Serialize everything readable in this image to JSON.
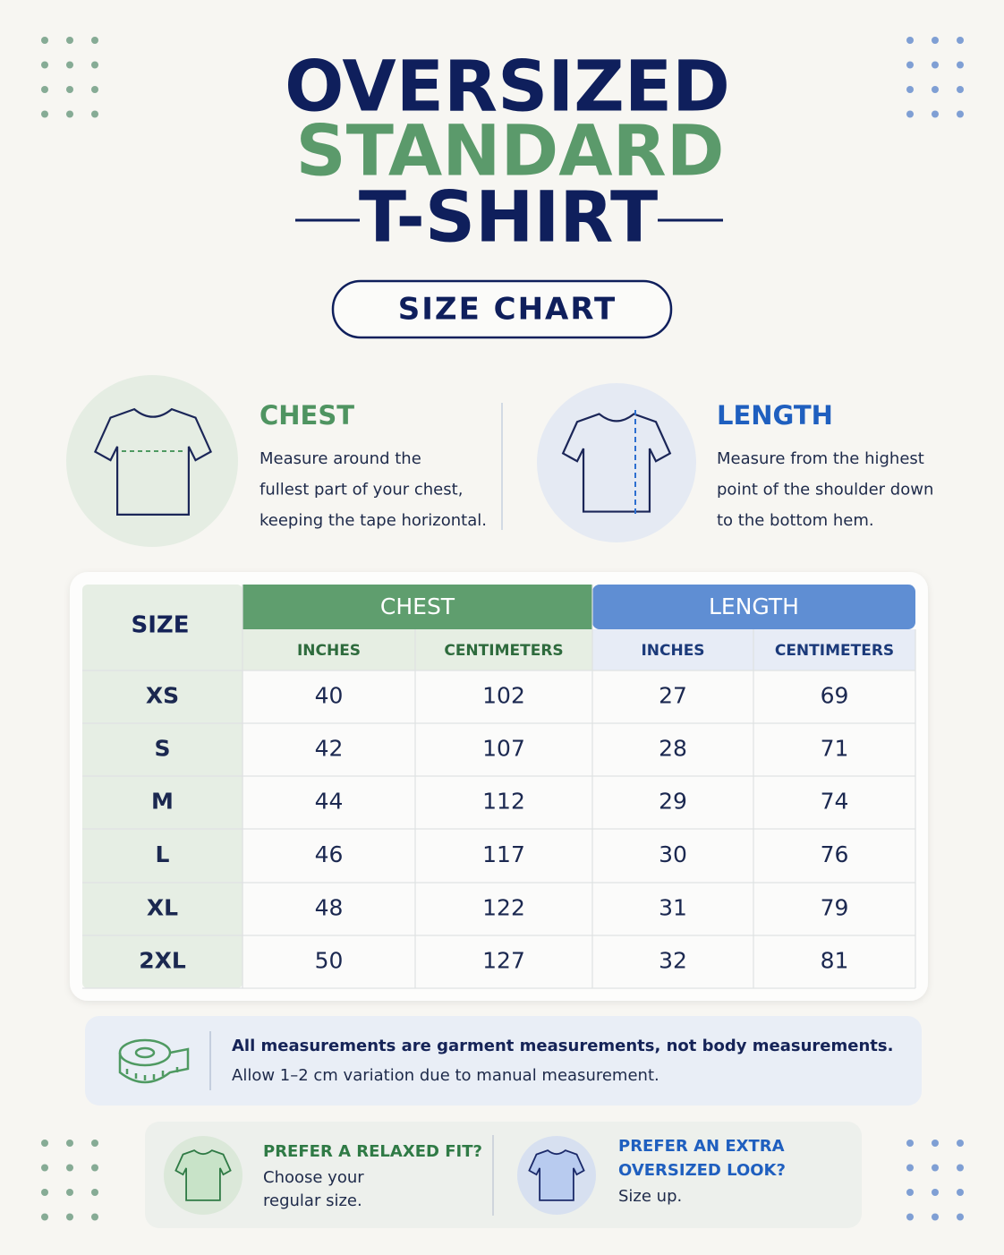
{
  "header": {
    "title_line1": "OVERSIZED",
    "title_line2": "STANDARD",
    "title_line3": "T-SHIRT",
    "badge": "SIZE CHART"
  },
  "guides": [
    {
      "title": "CHEST",
      "text": [
        "Measure around the",
        "fullest part of your chest,",
        "keeping the tape horizontal."
      ]
    },
    {
      "title": "LENGTH",
      "text": [
        "Measure from the highest",
        "point of the shoulder down",
        "to the bottom hem."
      ]
    }
  ],
  "table": {
    "size_header": "SIZE",
    "groups": [
      {
        "label": "CHEST",
        "units": [
          "INCHES",
          "CENTIMETERS"
        ]
      },
      {
        "label": "LENGTH",
        "units": [
          "INCHES",
          "CENTIMETERS"
        ]
      }
    ],
    "rows": [
      [
        "XS",
        40,
        102,
        27,
        69
      ],
      [
        "S",
        42,
        107,
        28,
        71
      ],
      [
        "M",
        44,
        112,
        29,
        74
      ],
      [
        "L",
        46,
        117,
        30,
        76
      ],
      [
        "XL",
        48,
        122,
        31,
        79
      ],
      [
        "2XL",
        50,
        127,
        32,
        81
      ]
    ]
  },
  "note": {
    "bold": "All measurements are garment measurements, not body measurements.",
    "text": "Allow 1–2 cm variation due to manual measurement."
  },
  "tips": [
    {
      "title": [
        "PREFER A RELAXED FIT?"
      ],
      "text": [
        "Choose your",
        "regular size."
      ]
    },
    {
      "title": [
        "PREFER AN EXTRA",
        "OVERSIZED LOOK?"
      ],
      "text": [
        "Size up."
      ]
    }
  ]
}
